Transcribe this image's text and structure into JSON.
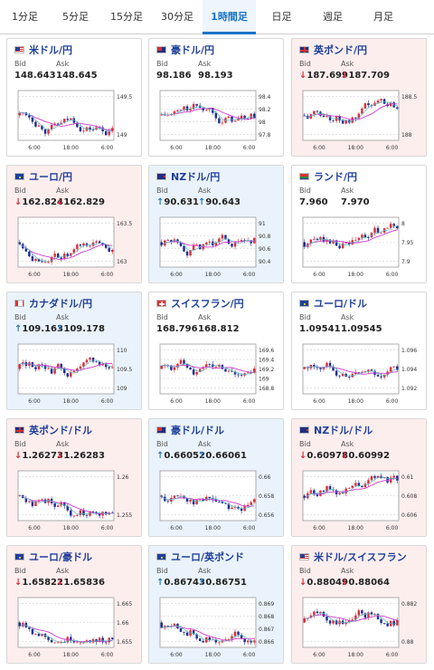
{
  "tabs": [
    "1分足",
    "5分足",
    "15分足",
    "30分足",
    "1時間足",
    "日足",
    "週足",
    "月足"
  ],
  "active_tab": 4,
  "labels": {
    "bid": "Bid",
    "ask": "Ask"
  },
  "colors": {
    "up_bg": "#eaf3fb",
    "down_bg": "#fdeeee",
    "up_candle": "#d8303b",
    "down_candle": "#1f2f8f",
    "ma": "#d23ad0",
    "ma2": "#59b7c0"
  },
  "cards": [
    {
      "name": "米ドル/円",
      "flag": "us",
      "trend": "flat",
      "dir": "none",
      "bid": "148.643",
      "ask": "148.645",
      "yticks": [
        "149.5",
        "149"
      ],
      "xticks": [
        "6:00",
        "18:00",
        "6:00"
      ]
    },
    {
      "name": "豪ドル/円",
      "flag": "au",
      "trend": "flat",
      "dir": "none",
      "bid": "98.186",
      "ask": "98.193",
      "yticks": [
        "98.4",
        "98.2",
        "98",
        "97.8"
      ],
      "xticks": [
        "6:00",
        "18:00",
        "6:00"
      ]
    },
    {
      "name": "英ポンド/円",
      "flag": "gb",
      "trend": "down",
      "dir": "down",
      "bid": "187.699",
      "ask": "187.709",
      "yticks": [
        "188.5",
        "188"
      ],
      "xticks": [
        "6:00",
        "18:00",
        "6:00"
      ]
    },
    {
      "name": "ユーロ/円",
      "flag": "eu",
      "trend": "down",
      "dir": "down",
      "bid": "162.824",
      "ask": "162.829",
      "yticks": [
        "163.5",
        "163"
      ],
      "xticks": [
        "6:00",
        "18:00",
        "6:00"
      ]
    },
    {
      "name": "NZドル/円",
      "flag": "nz",
      "trend": "up",
      "dir": "up",
      "bid": "90.631",
      "ask": "90.643",
      "yticks": [
        "91",
        "90.8",
        "90.6",
        "90.4"
      ],
      "xticks": [
        "6:00",
        "18:00",
        "6:00"
      ]
    },
    {
      "name": "ランド/円",
      "flag": "za",
      "trend": "flat",
      "dir": "none",
      "bid": "7.960",
      "ask": "7.970",
      "yticks": [
        "8",
        "7.95",
        "7.9"
      ],
      "xticks": [
        "6:00",
        "18:00",
        "6:00"
      ]
    },
    {
      "name": "カナダドル/円",
      "flag": "ca",
      "trend": "up",
      "dir": "up",
      "bid": "109.163",
      "ask": "109.178",
      "yticks": [
        "110",
        "109.5",
        "109"
      ],
      "xticks": [
        "6:00",
        "18:00",
        "6:00"
      ]
    },
    {
      "name": "スイスフラン/円",
      "flag": "ch",
      "trend": "flat",
      "dir": "none",
      "bid": "168.796",
      "ask": "168.812",
      "yticks": [
        "169.6",
        "169.4",
        "169.2",
        "169",
        "168.8"
      ],
      "xticks": [
        "6:00",
        "18:00",
        "6:00"
      ]
    },
    {
      "name": "ユーロ/ドル",
      "flag": "eu",
      "trend": "flat",
      "dir": "none",
      "bid": "1.09541",
      "ask": "1.09545",
      "yticks": [
        "1.096",
        "1.094",
        "1.092"
      ],
      "xticks": [
        "6:00",
        "18:00",
        "6:00"
      ]
    },
    {
      "name": "英ポンド/ドル",
      "flag": "gb",
      "trend": "down",
      "dir": "down",
      "bid": "1.26273",
      "ask": "1.26283",
      "yticks": [
        "1.26",
        "1.255"
      ],
      "xticks": [
        "6:00",
        "18:00",
        "6:00"
      ]
    },
    {
      "name": "豪ドル/ドル",
      "flag": "au",
      "trend": "up",
      "dir": "up",
      "bid": "0.66052",
      "ask": "0.66061",
      "yticks": [
        "0.66",
        "0.658",
        "0.656"
      ],
      "xticks": [
        "6:00",
        "18:00",
        "6:00"
      ]
    },
    {
      "name": "NZドル/ドル",
      "flag": "nz",
      "trend": "down",
      "dir": "down",
      "bid": "0.60978",
      "ask": "0.60992",
      "yticks": [
        "0.61",
        "0.608",
        "0.606"
      ],
      "xticks": [
        "6:00",
        "18:00",
        "6:00"
      ]
    },
    {
      "name": "ユーロ/豪ドル",
      "flag": "eu",
      "trend": "down",
      "dir": "down",
      "bid": "1.65822",
      "ask": "1.65836",
      "yticks": [
        "1.665",
        "1.66",
        "1.655"
      ],
      "xticks": [
        "6:00",
        "18:00",
        "6:00"
      ]
    },
    {
      "name": "ユーロ/英ポンド",
      "flag": "eu",
      "trend": "up",
      "dir": "up",
      "bid": "0.86743",
      "ask": "0.86751",
      "yticks": [
        "0.869",
        "0.868",
        "0.867",
        "0.866"
      ],
      "xticks": [
        "6:00",
        "18:00",
        "6:00"
      ]
    },
    {
      "name": "米ドル/スイスフラン",
      "flag": "us",
      "trend": "down",
      "dir": "down",
      "bid": "0.88049",
      "ask": "0.88064",
      "yticks": [
        "0.882",
        "0.88"
      ],
      "xticks": [
        "6:00",
        "18:00",
        "6:00"
      ]
    }
  ]
}
